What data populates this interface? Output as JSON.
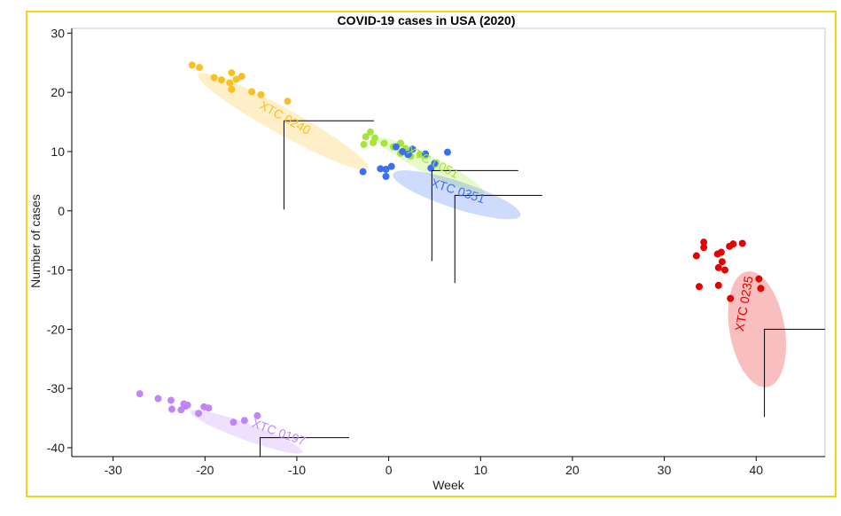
{
  "chart_data": {
    "type": "scatter",
    "title": "COVID-19 cases in USA (2020)",
    "xlabel": "Week",
    "ylabel": "Number of cases",
    "xlim": [
      -34.5,
      47.5
    ],
    "ylim": [
      -41.5,
      30.8
    ],
    "x_ticks": [
      -30,
      -20,
      -10,
      0,
      10,
      20,
      30,
      40
    ],
    "y_ticks": [
      30,
      20,
      10,
      0,
      -10,
      -20,
      -30,
      -40
    ],
    "grid": false,
    "legend": "none",
    "border_color": "#f2d21b",
    "series": [
      {
        "label": "XTC 0240",
        "color": "#fbbf24",
        "points": [
          [
            -21.4,
            24.6
          ],
          [
            -20.6,
            24.2
          ],
          [
            -19,
            22.5
          ],
          [
            -18.2,
            22.1
          ],
          [
            -17.3,
            21.6
          ],
          [
            -17.1,
            23.3
          ],
          [
            -16.6,
            22.2
          ],
          [
            -16,
            22.7
          ],
          [
            -14.9,
            20.1
          ],
          [
            -13.9,
            19.6
          ],
          [
            -17.1,
            20.5
          ],
          [
            -11,
            18.5
          ]
        ],
        "ellipse": {
          "cx": -11.5,
          "cy": 15.1,
          "rx": 10.6,
          "ry": 2.2,
          "angle_deg": 29
        },
        "callout": {
          "x": -11.4,
          "y": 0.2,
          "x2": -1.6,
          "y2": 15.2
        }
      },
      {
        "label": "XTC 0051",
        "color": "#a3e635",
        "points": [
          [
            -2.5,
            12.5
          ],
          [
            -2,
            13.3
          ],
          [
            -1.5,
            12.3
          ],
          [
            -1.7,
            11.5
          ],
          [
            -2.7,
            11.2
          ],
          [
            -0.5,
            11.4
          ],
          [
            0.5,
            10.8
          ],
          [
            1.3,
            11.4
          ],
          [
            1.8,
            10.5
          ],
          [
            1.3,
            9.7
          ],
          [
            2.4,
            9.2
          ],
          [
            3.4,
            9.5
          ],
          [
            4,
            9.3
          ]
        ],
        "ellipse": {
          "cx": 4.6,
          "cy": 7.6,
          "rx": 6.5,
          "ry": 1.5,
          "angle_deg": 27
        },
        "callout": {
          "x": 4.7,
          "y": -8.5,
          "x2": 14.1,
          "y2": 6.8
        }
      },
      {
        "label": "XTC 0351",
        "color": "#3b6ff5",
        "points": [
          [
            -2.8,
            6.6
          ],
          [
            -0.9,
            7.1
          ],
          [
            -0.3,
            7
          ],
          [
            0.3,
            7.5
          ],
          [
            -0.3,
            5.8
          ],
          [
            0.8,
            10.8
          ],
          [
            1.5,
            10
          ],
          [
            2.6,
            10.4
          ],
          [
            2.1,
            9.5
          ],
          [
            2.2,
            9.6
          ],
          [
            4,
            9.6
          ],
          [
            5,
            8
          ],
          [
            4.6,
            7.2
          ],
          [
            6.4,
            9.9
          ]
        ],
        "ellipse": {
          "cx": 7.4,
          "cy": 2.7,
          "rx": 7.3,
          "ry": 2.3,
          "angle_deg": 18
        },
        "callout": {
          "x": 7.2,
          "y": -12.2,
          "x2": 16.7,
          "y2": 2.6
        }
      },
      {
        "label": "XTC 0235",
        "color": "#e60000",
        "points": [
          [
            34.3,
            -5.3
          ],
          [
            34.3,
            -6.2
          ],
          [
            33.5,
            -7.6
          ],
          [
            35.8,
            -7.3
          ],
          [
            36.2,
            -7
          ],
          [
            37.1,
            -6
          ],
          [
            37.5,
            -5.6
          ],
          [
            38.5,
            -5.5
          ],
          [
            36.3,
            -8.6
          ],
          [
            35.9,
            -9.6
          ],
          [
            36.6,
            -10
          ],
          [
            33.8,
            -12.8
          ],
          [
            35.9,
            -12.6
          ],
          [
            37.2,
            -14.8
          ],
          [
            40.3,
            -11.5
          ],
          [
            40.5,
            -13.1
          ]
        ],
        "ellipse": {
          "cx": 40.1,
          "cy": -20,
          "rx": 3,
          "ry": 9.9,
          "angle_deg": -10
        },
        "callout": {
          "x": 40.9,
          "y": -34.8,
          "x2": 47.5,
          "y2": -20
        }
      },
      {
        "label": "XTC 0197",
        "color": "#c084fc",
        "points": [
          [
            -27.1,
            -30.9
          ],
          [
            -25.1,
            -31.7
          ],
          [
            -23.7,
            -32
          ],
          [
            -23.6,
            -33.5
          ],
          [
            -22.6,
            -33.6
          ],
          [
            -22.3,
            -32.6
          ],
          [
            -21.9,
            -32.8
          ],
          [
            -22.1,
            -33
          ],
          [
            -20.7,
            -34.2
          ],
          [
            -20.1,
            -33.1
          ],
          [
            -19.6,
            -33.3
          ],
          [
            -16.9,
            -35.7
          ],
          [
            -15.7,
            -35.4
          ],
          [
            -14.3,
            -34.6
          ]
        ],
        "ellipse": {
          "cx": -15.5,
          "cy": -37.3,
          "rx": 6.5,
          "ry": 1.4,
          "angle_deg": 20
        },
        "callout": {
          "x": -14,
          "y": -41.5,
          "x2": -4.3,
          "y2": -38.3
        }
      }
    ]
  }
}
